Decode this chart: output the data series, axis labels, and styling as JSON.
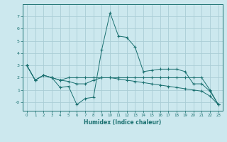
{
  "xlabel": "Humidex (Indice chaleur)",
  "ylabel": "",
  "xlim": [
    -0.5,
    23.5
  ],
  "ylim": [
    -0.7,
    8.0
  ],
  "yticks": [
    0,
    1,
    2,
    3,
    4,
    5,
    6,
    7
  ],
  "ytick_labels": [
    "-0",
    "1",
    "2",
    "3",
    "4",
    "5",
    "6",
    "7"
  ],
  "xticks": [
    0,
    1,
    2,
    3,
    4,
    5,
    6,
    7,
    8,
    9,
    10,
    11,
    12,
    13,
    14,
    15,
    16,
    17,
    18,
    19,
    20,
    21,
    22,
    23
  ],
  "background_color": "#cce8ee",
  "grid_color": "#aacdd5",
  "line_color": "#1a7070",
  "lines": [
    {
      "x": [
        0,
        1,
        2,
        3,
        4,
        5,
        6,
        7,
        8,
        9,
        10,
        11,
        12,
        13,
        14,
        15,
        16,
        17,
        18,
        19,
        20,
        21,
        22,
        23
      ],
      "y": [
        3.0,
        1.8,
        2.2,
        2.0,
        1.2,
        1.3,
        -0.2,
        0.3,
        0.4,
        4.3,
        7.3,
        5.4,
        5.3,
        4.5,
        2.5,
        2.6,
        2.7,
        2.7,
        2.7,
        2.5,
        1.5,
        1.5,
        0.9,
        -0.2
      ]
    },
    {
      "x": [
        0,
        1,
        2,
        3,
        4,
        5,
        6,
        7,
        8,
        9,
        10,
        11,
        12,
        13,
        14,
        15,
        16,
        17,
        18,
        19,
        20,
        21,
        22,
        23
      ],
      "y": [
        3.0,
        1.8,
        2.2,
        2.0,
        1.8,
        2.0,
        2.0,
        2.0,
        2.0,
        2.0,
        2.0,
        2.0,
        2.0,
        2.0,
        2.0,
        2.0,
        2.0,
        2.0,
        2.0,
        2.0,
        2.0,
        2.0,
        1.0,
        -0.2
      ]
    },
    {
      "x": [
        0,
        1,
        2,
        3,
        4,
        5,
        6,
        7,
        8,
        9,
        10,
        11,
        12,
        13,
        14,
        15,
        16,
        17,
        18,
        19,
        20,
        21,
        22,
        23
      ],
      "y": [
        3.0,
        1.8,
        2.2,
        2.0,
        1.8,
        1.7,
        1.5,
        1.5,
        1.8,
        2.0,
        2.0,
        1.9,
        1.8,
        1.7,
        1.6,
        1.5,
        1.4,
        1.3,
        1.2,
        1.1,
        1.0,
        0.9,
        0.5,
        -0.2
      ]
    }
  ]
}
